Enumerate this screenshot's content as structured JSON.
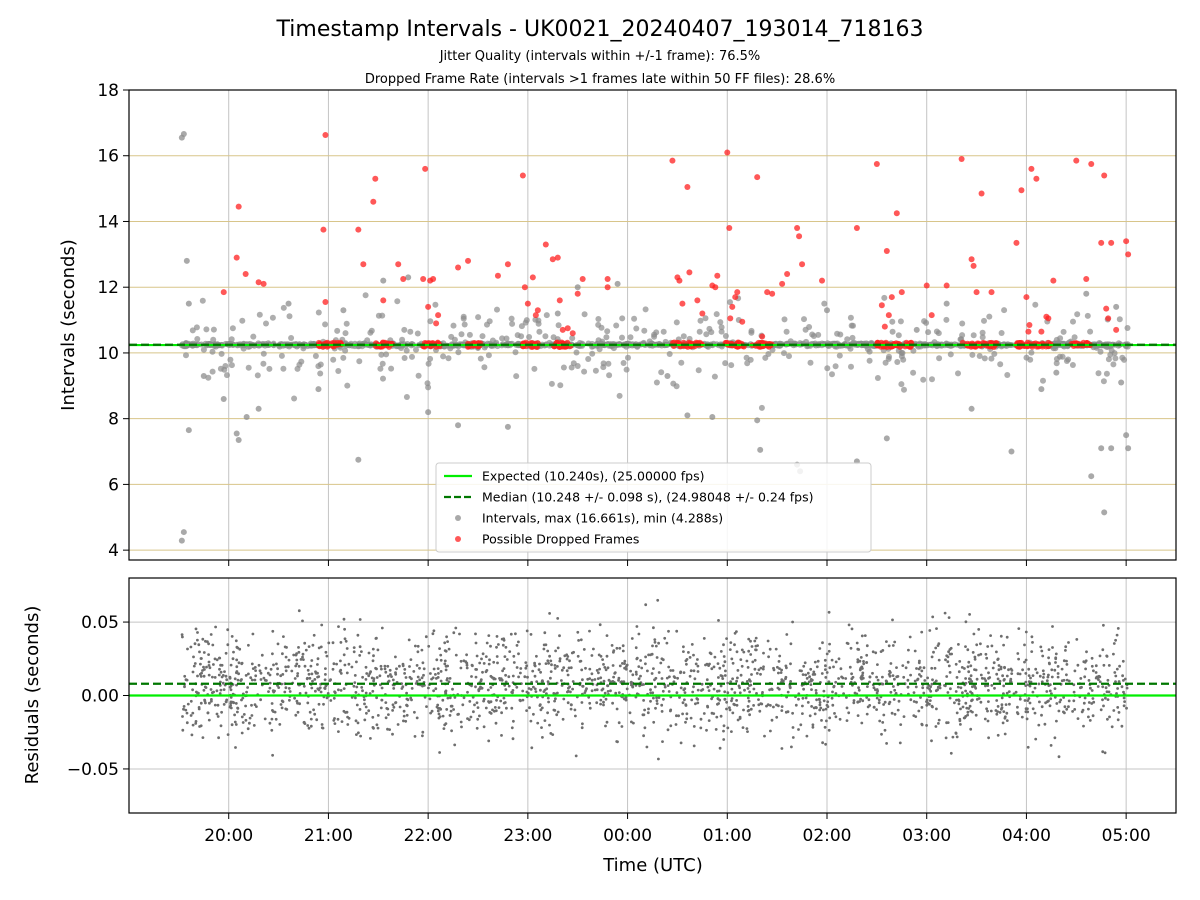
{
  "colors": {
    "expected": "#00ee00",
    "median": "#007700",
    "intervals": "#8c8c8c",
    "dropped": "#ff2020",
    "residuals": "#6e6e6e",
    "hgrid_top": "#d8c58a",
    "grid": "#c4c4c4"
  },
  "chart_data": {
    "type": "scatter",
    "title": "Timestamp Intervals - UK0021_20240407_193014_718163",
    "subtitle_1": "Jitter Quality (intervals within +/-1 frame): 76.5%",
    "subtitle_2": "Dropped Frame Rate (intervals >1 frames late within 50 FF files): 28.6%",
    "xlabel": "Time (UTC)",
    "x_range_hours": [
      19.0,
      29.5
    ],
    "x_ticks": [
      "20:00",
      "21:00",
      "22:00",
      "23:00",
      "00:00",
      "01:00",
      "02:00",
      "03:00",
      "04:00",
      "05:00"
    ],
    "x_tick_hours": [
      20,
      21,
      22,
      23,
      24,
      25,
      26,
      27,
      28,
      29
    ],
    "top_panel": {
      "ylabel": "Intervals (seconds)",
      "ylim": [
        3.7,
        18.0
      ],
      "y_ticks": [
        "4",
        "6",
        "8",
        "10",
        "12",
        "14",
        "16",
        "18"
      ],
      "y_tick_values": [
        4,
        6,
        8,
        10,
        12,
        14,
        16,
        18
      ],
      "grid": true,
      "expected_value": 10.24,
      "median_value": 10.248,
      "interval_max": 16.661,
      "interval_min": 4.288,
      "outlier_intervals": [
        {
          "t": 19.53,
          "y": 16.55
        },
        {
          "t": 19.55,
          "y": 16.66
        },
        {
          "t": 19.58,
          "y": 12.8
        },
        {
          "t": 19.6,
          "y": 7.65
        },
        {
          "t": 19.53,
          "y": 4.29
        },
        {
          "t": 19.55,
          "y": 4.55
        },
        {
          "t": 19.6,
          "y": 11.5
        },
        {
          "t": 19.75,
          "y": 9.3
        },
        {
          "t": 19.95,
          "y": 8.6
        },
        {
          "t": 20.08,
          "y": 7.55
        },
        {
          "t": 20.1,
          "y": 7.35
        },
        {
          "t": 20.18,
          "y": 8.05
        },
        {
          "t": 20.3,
          "y": 8.3
        },
        {
          "t": 20.6,
          "y": 11.5
        },
        {
          "t": 20.9,
          "y": 8.9
        },
        {
          "t": 21.15,
          "y": 11.3
        },
        {
          "t": 21.3,
          "y": 6.75
        },
        {
          "t": 21.55,
          "y": 12.2
        },
        {
          "t": 21.8,
          "y": 12.3
        },
        {
          "t": 22.0,
          "y": 8.2
        },
        {
          "t": 22.3,
          "y": 7.8
        },
        {
          "t": 22.8,
          "y": 7.75
        },
        {
          "t": 23.3,
          "y": 11.2
        },
        {
          "t": 23.5,
          "y": 12.0
        },
        {
          "t": 23.9,
          "y": 12.1
        },
        {
          "t": 24.4,
          "y": 9.3
        },
        {
          "t": 24.6,
          "y": 8.1
        },
        {
          "t": 24.85,
          "y": 8.05
        },
        {
          "t": 25.3,
          "y": 7.95
        },
        {
          "t": 25.33,
          "y": 7.05
        },
        {
          "t": 25.7,
          "y": 6.6
        },
        {
          "t": 25.73,
          "y": 6.4
        },
        {
          "t": 26.0,
          "y": 11.3
        },
        {
          "t": 26.3,
          "y": 6.7
        },
        {
          "t": 26.6,
          "y": 7.4
        },
        {
          "t": 26.9,
          "y": 10.7
        },
        {
          "t": 27.2,
          "y": 11.5
        },
        {
          "t": 27.45,
          "y": 8.3
        },
        {
          "t": 27.85,
          "y": 7.0
        },
        {
          "t": 28.15,
          "y": 8.9
        },
        {
          "t": 28.3,
          "y": 9.4
        },
        {
          "t": 28.6,
          "y": 11.8
        },
        {
          "t": 28.65,
          "y": 6.25
        },
        {
          "t": 28.75,
          "y": 7.1
        },
        {
          "t": 28.78,
          "y": 5.15
        },
        {
          "t": 28.85,
          "y": 7.1
        },
        {
          "t": 28.9,
          "y": 11.4
        },
        {
          "t": 29.0,
          "y": 7.5
        },
        {
          "t": 29.02,
          "y": 7.1
        },
        {
          "t": 28.95,
          "y": 9.1
        }
      ],
      "dropped_frames": [
        {
          "t": 19.95,
          "y": 11.85
        },
        {
          "t": 20.08,
          "y": 12.9
        },
        {
          "t": 20.1,
          "y": 14.45
        },
        {
          "t": 20.17,
          "y": 12.4
        },
        {
          "t": 20.3,
          "y": 12.15
        },
        {
          "t": 20.35,
          "y": 12.1
        },
        {
          "t": 20.95,
          "y": 13.75
        },
        {
          "t": 20.97,
          "y": 11.55
        },
        {
          "t": 20.97,
          "y": 16.63
        },
        {
          "t": 21.3,
          "y": 13.75
        },
        {
          "t": 21.35,
          "y": 12.7
        },
        {
          "t": 21.45,
          "y": 14.6
        },
        {
          "t": 21.47,
          "y": 15.3
        },
        {
          "t": 21.55,
          "y": 11.6
        },
        {
          "t": 21.7,
          "y": 12.7
        },
        {
          "t": 21.75,
          "y": 12.25
        },
        {
          "t": 21.95,
          "y": 12.25
        },
        {
          "t": 21.97,
          "y": 15.6
        },
        {
          "t": 22.0,
          "y": 11.4
        },
        {
          "t": 22.02,
          "y": 12.2
        },
        {
          "t": 22.05,
          "y": 12.25
        },
        {
          "t": 22.08,
          "y": 10.9
        },
        {
          "t": 22.1,
          "y": 11.15
        },
        {
          "t": 22.3,
          "y": 12.6
        },
        {
          "t": 22.4,
          "y": 12.8
        },
        {
          "t": 22.7,
          "y": 12.35
        },
        {
          "t": 22.8,
          "y": 12.7
        },
        {
          "t": 22.95,
          "y": 15.4
        },
        {
          "t": 22.97,
          "y": 12.0
        },
        {
          "t": 23.0,
          "y": 11.5
        },
        {
          "t": 23.05,
          "y": 12.3
        },
        {
          "t": 23.08,
          "y": 11.15
        },
        {
          "t": 23.1,
          "y": 11.3
        },
        {
          "t": 23.18,
          "y": 13.3
        },
        {
          "t": 23.25,
          "y": 12.85
        },
        {
          "t": 23.3,
          "y": 12.9
        },
        {
          "t": 23.32,
          "y": 11.6
        },
        {
          "t": 23.35,
          "y": 10.7
        },
        {
          "t": 23.4,
          "y": 10.75
        },
        {
          "t": 23.45,
          "y": 10.6
        },
        {
          "t": 23.5,
          "y": 11.8
        },
        {
          "t": 23.55,
          "y": 12.25
        },
        {
          "t": 23.8,
          "y": 12.0
        },
        {
          "t": 23.8,
          "y": 12.25
        },
        {
          "t": 24.45,
          "y": 15.85
        },
        {
          "t": 24.5,
          "y": 12.3
        },
        {
          "t": 24.52,
          "y": 12.2
        },
        {
          "t": 24.55,
          "y": 11.5
        },
        {
          "t": 24.6,
          "y": 15.05
        },
        {
          "t": 24.62,
          "y": 12.45
        },
        {
          "t": 24.7,
          "y": 11.6
        },
        {
          "t": 24.75,
          "y": 11.2
        },
        {
          "t": 24.85,
          "y": 12.05
        },
        {
          "t": 24.88,
          "y": 12.0
        },
        {
          "t": 24.9,
          "y": 12.35
        },
        {
          "t": 25.0,
          "y": 16.1
        },
        {
          "t": 25.02,
          "y": 13.8
        },
        {
          "t": 25.03,
          "y": 11.05
        },
        {
          "t": 25.05,
          "y": 11.4
        },
        {
          "t": 25.08,
          "y": 11.7
        },
        {
          "t": 25.1,
          "y": 11.85
        },
        {
          "t": 25.15,
          "y": 10.95
        },
        {
          "t": 25.3,
          "y": 15.35
        },
        {
          "t": 25.35,
          "y": 10.5
        },
        {
          "t": 25.4,
          "y": 11.85
        },
        {
          "t": 25.45,
          "y": 11.8
        },
        {
          "t": 25.55,
          "y": 12.1
        },
        {
          "t": 25.6,
          "y": 12.4
        },
        {
          "t": 25.7,
          "y": 13.8
        },
        {
          "t": 25.72,
          "y": 13.55
        },
        {
          "t": 25.75,
          "y": 12.7
        },
        {
          "t": 25.95,
          "y": 12.2
        },
        {
          "t": 26.3,
          "y": 13.8
        },
        {
          "t": 26.5,
          "y": 15.75
        },
        {
          "t": 26.55,
          "y": 11.45
        },
        {
          "t": 26.58,
          "y": 10.8
        },
        {
          "t": 26.6,
          "y": 13.1
        },
        {
          "t": 26.62,
          "y": 11.15
        },
        {
          "t": 26.65,
          "y": 11.7
        },
        {
          "t": 26.7,
          "y": 14.25
        },
        {
          "t": 26.75,
          "y": 11.85
        },
        {
          "t": 27.0,
          "y": 12.05
        },
        {
          "t": 27.05,
          "y": 11.15
        },
        {
          "t": 27.2,
          "y": 12.05
        },
        {
          "t": 27.35,
          "y": 15.9
        },
        {
          "t": 27.45,
          "y": 12.85
        },
        {
          "t": 27.47,
          "y": 12.65
        },
        {
          "t": 27.5,
          "y": 11.85
        },
        {
          "t": 27.55,
          "y": 14.85
        },
        {
          "t": 27.65,
          "y": 11.85
        },
        {
          "t": 27.9,
          "y": 13.35
        },
        {
          "t": 27.95,
          "y": 14.95
        },
        {
          "t": 28.0,
          "y": 11.7
        },
        {
          "t": 28.02,
          "y": 10.65
        },
        {
          "t": 28.03,
          "y": 10.85
        },
        {
          "t": 28.05,
          "y": 15.6
        },
        {
          "t": 28.1,
          "y": 15.3
        },
        {
          "t": 28.15,
          "y": 10.65
        },
        {
          "t": 28.2,
          "y": 11.1
        },
        {
          "t": 28.22,
          "y": 11.05
        },
        {
          "t": 28.27,
          "y": 12.2
        },
        {
          "t": 28.5,
          "y": 15.85
        },
        {
          "t": 28.6,
          "y": 12.25
        },
        {
          "t": 28.65,
          "y": 15.75
        },
        {
          "t": 28.75,
          "y": 13.35
        },
        {
          "t": 28.78,
          "y": 15.4
        },
        {
          "t": 28.8,
          "y": 11.35
        },
        {
          "t": 28.85,
          "y": 13.35
        },
        {
          "t": 28.9,
          "y": 10.7
        },
        {
          "t": 29.0,
          "y": 13.4
        },
        {
          "t": 29.02,
          "y": 13.0
        },
        {
          "t": 28.82,
          "y": 11.05
        }
      ],
      "dropped_clusters": [
        {
          "t0": 20.9,
          "t1": 21.13
        },
        {
          "t0": 21.45,
          "t1": 21.65
        },
        {
          "t0": 21.95,
          "t1": 22.12
        },
        {
          "t0": 22.4,
          "t1": 22.55
        },
        {
          "t0": 22.95,
          "t1": 23.1
        },
        {
          "t0": 23.25,
          "t1": 23.45
        },
        {
          "t0": 24.45,
          "t1": 24.75
        },
        {
          "t0": 24.98,
          "t1": 25.18
        },
        {
          "t0": 25.25,
          "t1": 25.45
        },
        {
          "t0": 26.5,
          "t1": 26.85
        },
        {
          "t0": 27.35,
          "t1": 27.7
        },
        {
          "t0": 27.9,
          "t1": 28.25
        },
        {
          "t0": 28.45,
          "t1": 28.65
        }
      ],
      "legend": [
        {
          "label": "Expected (10.240s), (25.00000 fps)",
          "kind": "line-solid"
        },
        {
          "label": "Median (10.248 +/- 0.098 s), (24.98048 +/- 0.24 fps)",
          "kind": "line-dashed"
        },
        {
          "label": "Intervals, max (16.661s), min (4.288s)",
          "kind": "marker-gray"
        },
        {
          "label": "Possible Dropped Frames",
          "kind": "marker-red"
        }
      ],
      "legend_location": "bottom-center"
    },
    "bottom_panel": {
      "ylabel": "Residuals (seconds)",
      "ylim": [
        -0.08,
        0.08
      ],
      "y_ticks": [
        "0.05",
        "0.00",
        "−0.05"
      ],
      "y_tick_values": [
        0.05,
        0.0,
        -0.05
      ],
      "grid": true,
      "expected_value": 0.0,
      "median_value": 0.008,
      "point_count": 2200,
      "residual_std": 0.025
    }
  }
}
